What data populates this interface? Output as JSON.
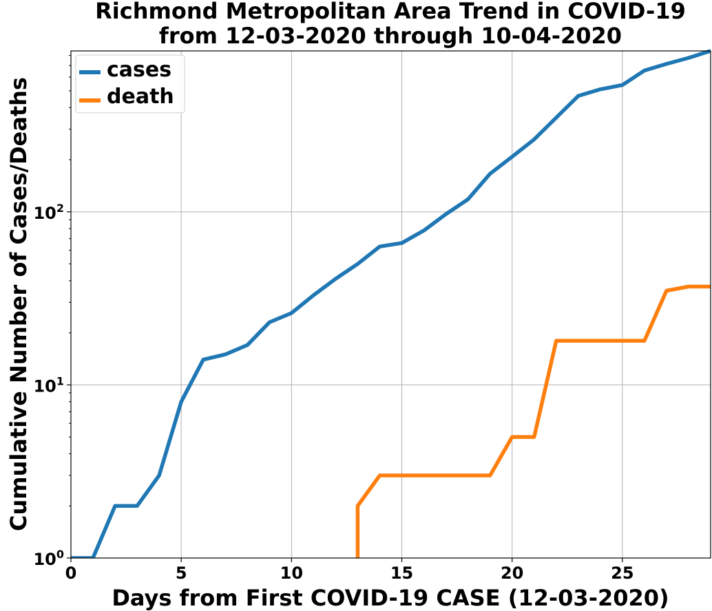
{
  "chart_data": {
    "type": "line",
    "title_line1": "Richmond Metropolitan Area Trend in COVID-19",
    "title_line2": "from 12-03-2020 through 10-04-2020",
    "xlabel": "Days from First COVID-19 CASE (12-03-2020)",
    "ylabel": "Cumulative Number of Cases/Deaths",
    "xlim": [
      0,
      29
    ],
    "ylim": [
      1,
      850
    ],
    "yscale": "log",
    "grid": true,
    "legend_position": "top-left",
    "x_ticks": [
      0,
      5,
      10,
      15,
      20,
      25
    ],
    "y_ticks": [
      {
        "value": 1,
        "base": "10",
        "exp": "0"
      },
      {
        "value": 10,
        "base": "10",
        "exp": "1"
      },
      {
        "value": 100,
        "base": "10",
        "exp": "2"
      }
    ],
    "series": [
      {
        "name": "cases",
        "color": "#1f77b4",
        "x": [
          0,
          1,
          2,
          3,
          4,
          5,
          6,
          7,
          8,
          9,
          10,
          11,
          12,
          13,
          14,
          15,
          16,
          17,
          18,
          19,
          20,
          21,
          22,
          23,
          24,
          25,
          26,
          27,
          28,
          29
        ],
        "y": [
          1,
          1,
          2,
          2,
          3,
          8,
          14,
          15,
          17,
          23,
          26,
          33,
          41,
          50,
          63,
          66,
          78,
          97,
          118,
          166,
          208,
          262,
          350,
          467,
          510,
          540,
          655,
          715,
          775,
          850
        ]
      },
      {
        "name": "death",
        "color": "#ff7f0e",
        "x": [
          13,
          13,
          14,
          15,
          16,
          17,
          18,
          19,
          20,
          21,
          22,
          23,
          24,
          25,
          26,
          27,
          28,
          29
        ],
        "y": [
          1,
          2,
          3,
          3,
          3,
          3,
          3,
          3,
          5,
          5,
          18,
          18,
          18,
          18,
          18,
          35,
          37,
          37
        ]
      }
    ]
  }
}
